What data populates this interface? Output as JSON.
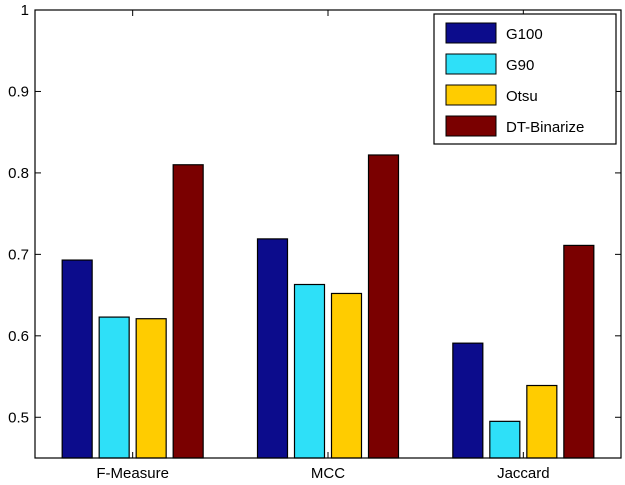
{
  "chart_data": {
    "type": "bar",
    "categories": [
      "F-Measure",
      "MCC",
      "Jaccard"
    ],
    "series": [
      {
        "name": "G100",
        "color": "#0c0c8c",
        "values": [
          0.693,
          0.719,
          0.591
        ]
      },
      {
        "name": "G90",
        "color": "#2ee0f8",
        "values": [
          0.623,
          0.663,
          0.495
        ]
      },
      {
        "name": "Otsu",
        "color": "#ffcc00",
        "values": [
          0.621,
          0.652,
          0.539
        ]
      },
      {
        "name": "DT-Binarize",
        "color": "#7a0000",
        "values": [
          0.81,
          0.822,
          0.711
        ]
      }
    ],
    "ylim": [
      0.45,
      1.0
    ],
    "yticks": [
      0.5,
      0.6,
      0.7,
      0.8,
      0.9,
      1
    ],
    "ytick_labels": [
      "0.5",
      "0.6",
      "0.7",
      "0.8",
      "0.9",
      "1"
    ],
    "legend_position": "top-right",
    "grid": false
  }
}
